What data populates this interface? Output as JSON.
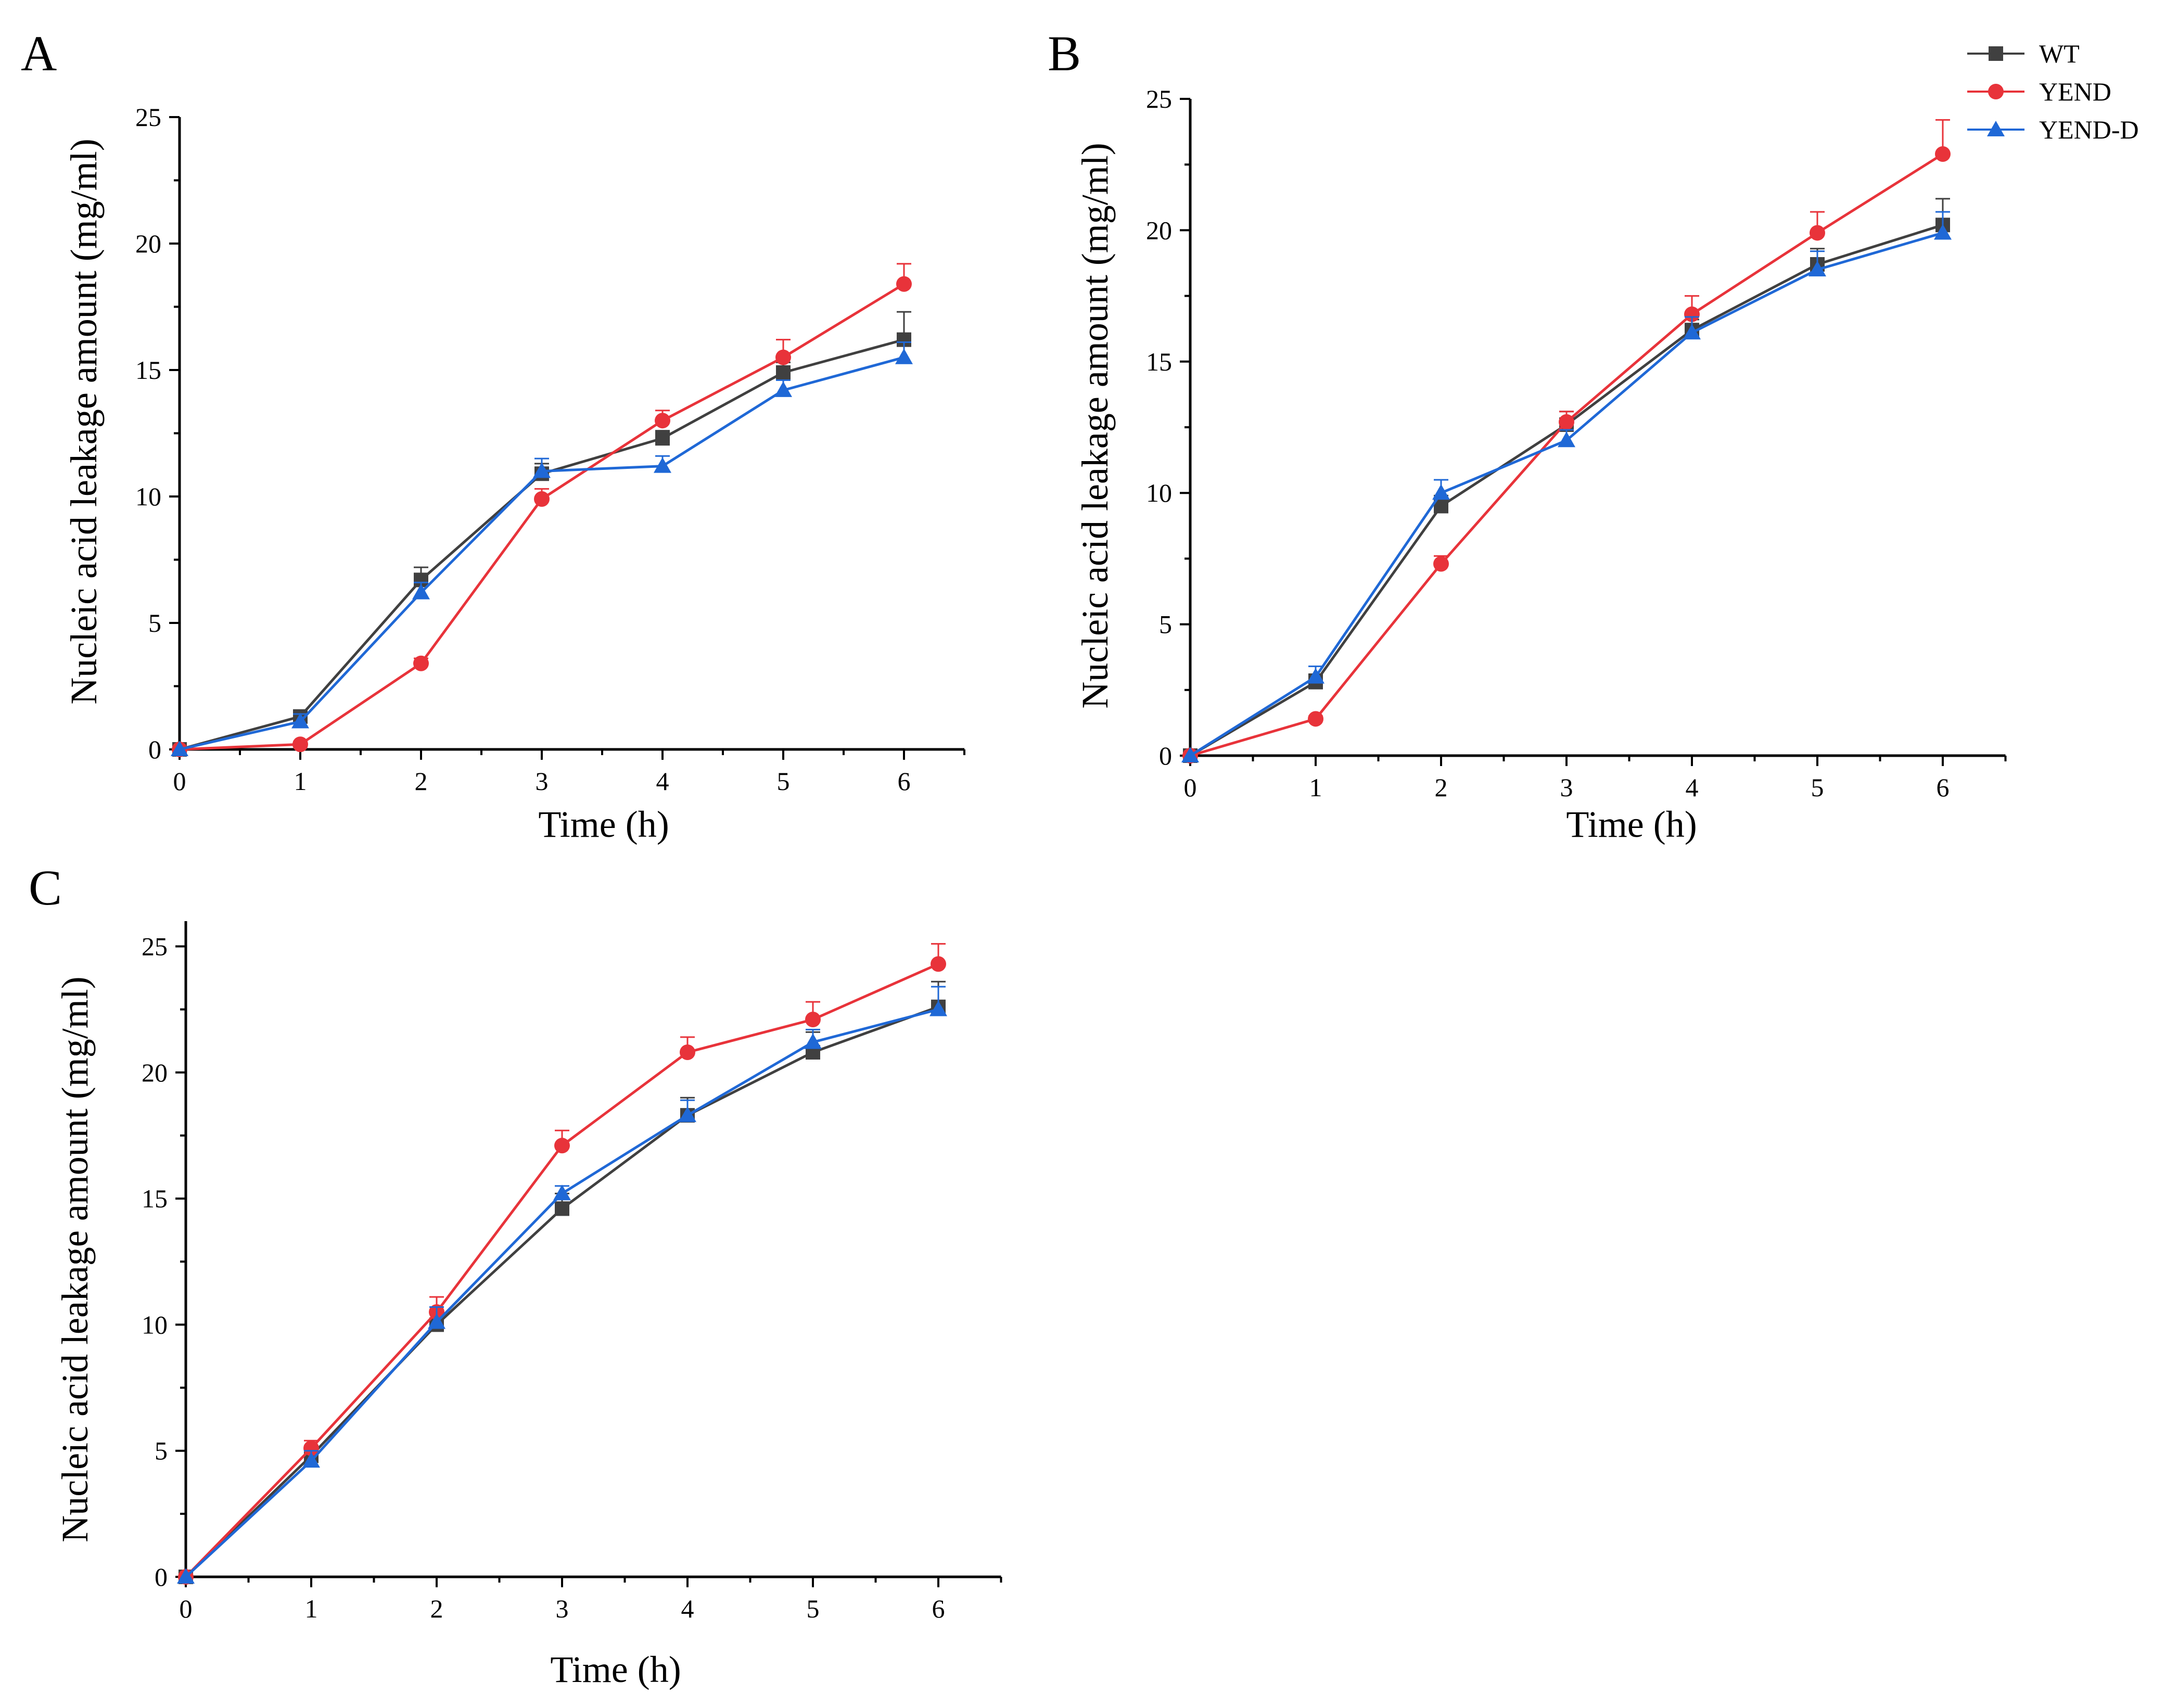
{
  "figure": {
    "series_style": {
      "WT": {
        "color": "#404040",
        "marker": "square"
      },
      "YEND": {
        "color": "#e8333a",
        "marker": "circle"
      },
      "YEND-D": {
        "color": "#1f68d6",
        "marker": "triangle"
      }
    }
  },
  "legend": {
    "entries": [
      {
        "name": "WT",
        "color": "#404040",
        "marker": "square"
      },
      {
        "name": "YEND",
        "color": "#e8333a",
        "marker": "circle"
      },
      {
        "name": "YEND-D",
        "color": "#1f68d6",
        "marker": "triangle"
      }
    ]
  },
  "chart_data": [
    {
      "panel": "A",
      "type": "line",
      "xlabel": "Time (h)",
      "ylabel": "Nucleic acid leakage amount (mg/ml)",
      "xlim": [
        0,
        6.5
      ],
      "ylim": [
        0,
        25
      ],
      "xticks": [
        0,
        1,
        2,
        3,
        4,
        5,
        6
      ],
      "yticks": [
        0,
        5,
        10,
        15,
        20,
        25
      ],
      "x": [
        0,
        1,
        2,
        3,
        4,
        5,
        6
      ],
      "series": [
        {
          "name": "WT",
          "values": [
            0,
            1.3,
            6.7,
            10.9,
            12.3,
            14.9,
            16.2
          ],
          "errors": [
            0,
            0.2,
            0.5,
            0.4,
            0.3,
            0.4,
            1.1
          ]
        },
        {
          "name": "YEND",
          "values": [
            0,
            0.2,
            3.4,
            9.9,
            13.0,
            15.5,
            18.4
          ],
          "errors": [
            0,
            0.1,
            0.2,
            0.4,
            0.4,
            0.7,
            0.8
          ]
        },
        {
          "name": "YEND-D",
          "values": [
            0,
            1.1,
            6.2,
            11.0,
            11.2,
            14.2,
            15.5
          ],
          "errors": [
            0,
            0.3,
            0.4,
            0.5,
            0.4,
            0.4,
            0.6
          ]
        }
      ]
    },
    {
      "panel": "B",
      "type": "line",
      "xlabel": "Time (h)",
      "ylabel": "Nucleic acid leakage amount (mg/ml)",
      "xlim": [
        0,
        6.5
      ],
      "ylim": [
        0,
        25
      ],
      "xticks": [
        0,
        1,
        2,
        3,
        4,
        5,
        6
      ],
      "yticks": [
        0,
        5,
        10,
        15,
        20,
        25
      ],
      "x": [
        0,
        1,
        2,
        3,
        4,
        5,
        6
      ],
      "series": [
        {
          "name": "WT",
          "values": [
            0,
            2.8,
            9.5,
            12.6,
            16.2,
            18.7,
            20.2
          ],
          "errors": [
            0,
            0.3,
            0.4,
            0.5,
            0.4,
            0.6,
            1.0
          ]
        },
        {
          "name": "YEND",
          "values": [
            0,
            1.4,
            7.3,
            12.7,
            16.8,
            19.9,
            22.9
          ],
          "errors": [
            0,
            0.1,
            0.3,
            0.4,
            0.7,
            0.8,
            1.3
          ]
        },
        {
          "name": "YEND-D",
          "values": [
            0,
            3.0,
            10.0,
            12.0,
            16.1,
            18.5,
            19.9
          ],
          "errors": [
            0,
            0.4,
            0.5,
            0.4,
            0.6,
            0.7,
            0.8
          ]
        }
      ]
    },
    {
      "panel": "C",
      "type": "line",
      "xlabel": "Time (h)",
      "ylabel": "Nucleic acid leakage amount (mg/ml)",
      "xlim": [
        0,
        6.5
      ],
      "ylim": [
        0,
        26
      ],
      "xticks": [
        0,
        1,
        2,
        3,
        4,
        5,
        6
      ],
      "yticks": [
        0,
        5,
        10,
        15,
        20,
        25
      ],
      "x": [
        0,
        1,
        2,
        3,
        4,
        5,
        6
      ],
      "series": [
        {
          "name": "WT",
          "values": [
            0,
            4.8,
            10.0,
            14.6,
            18.3,
            20.8,
            22.6
          ],
          "errors": [
            0,
            0.4,
            0.7,
            0.6,
            0.7,
            0.8,
            1.0
          ]
        },
        {
          "name": "YEND",
          "values": [
            0,
            5.1,
            10.5,
            17.1,
            20.8,
            22.1,
            24.3
          ],
          "errors": [
            0,
            0.3,
            0.6,
            0.6,
            0.6,
            0.7,
            0.8
          ]
        },
        {
          "name": "YEND-D",
          "values": [
            0,
            4.6,
            10.1,
            15.2,
            18.3,
            21.2,
            22.5
          ],
          "errors": [
            0,
            0.4,
            0.6,
            0.3,
            0.6,
            0.5,
            0.9
          ]
        }
      ]
    }
  ]
}
